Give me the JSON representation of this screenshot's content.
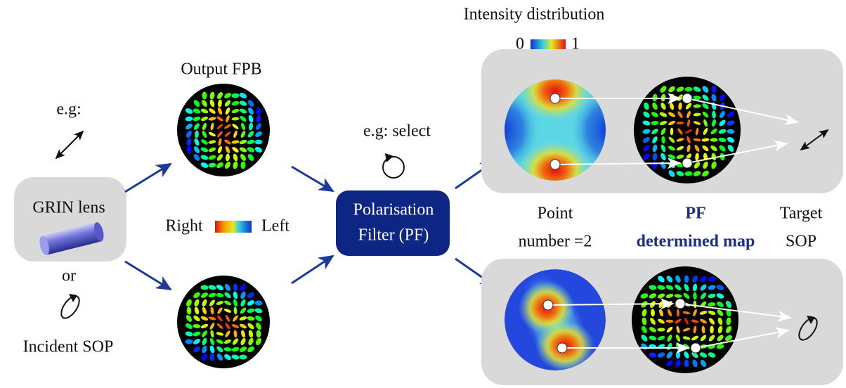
{
  "input": {
    "example": "e.g:",
    "source": "GRIN lens",
    "or": "or",
    "caption": "Incident SOP"
  },
  "output_fpb": {
    "title": "Output FPB",
    "colorbar": {
      "left": "Right",
      "right": "Left"
    }
  },
  "filter": {
    "note": "e.g: select",
    "label": [
      "Polarisation",
      "Filter (PF)"
    ]
  },
  "results": {
    "title": "Intensity distribution",
    "colorbar": {
      "min": 0,
      "max": 1
    },
    "columns": [
      [
        "Point",
        "number =2"
      ],
      [
        "PF",
        "determined map"
      ],
      [
        "Target",
        "SOP"
      ]
    ]
  }
}
